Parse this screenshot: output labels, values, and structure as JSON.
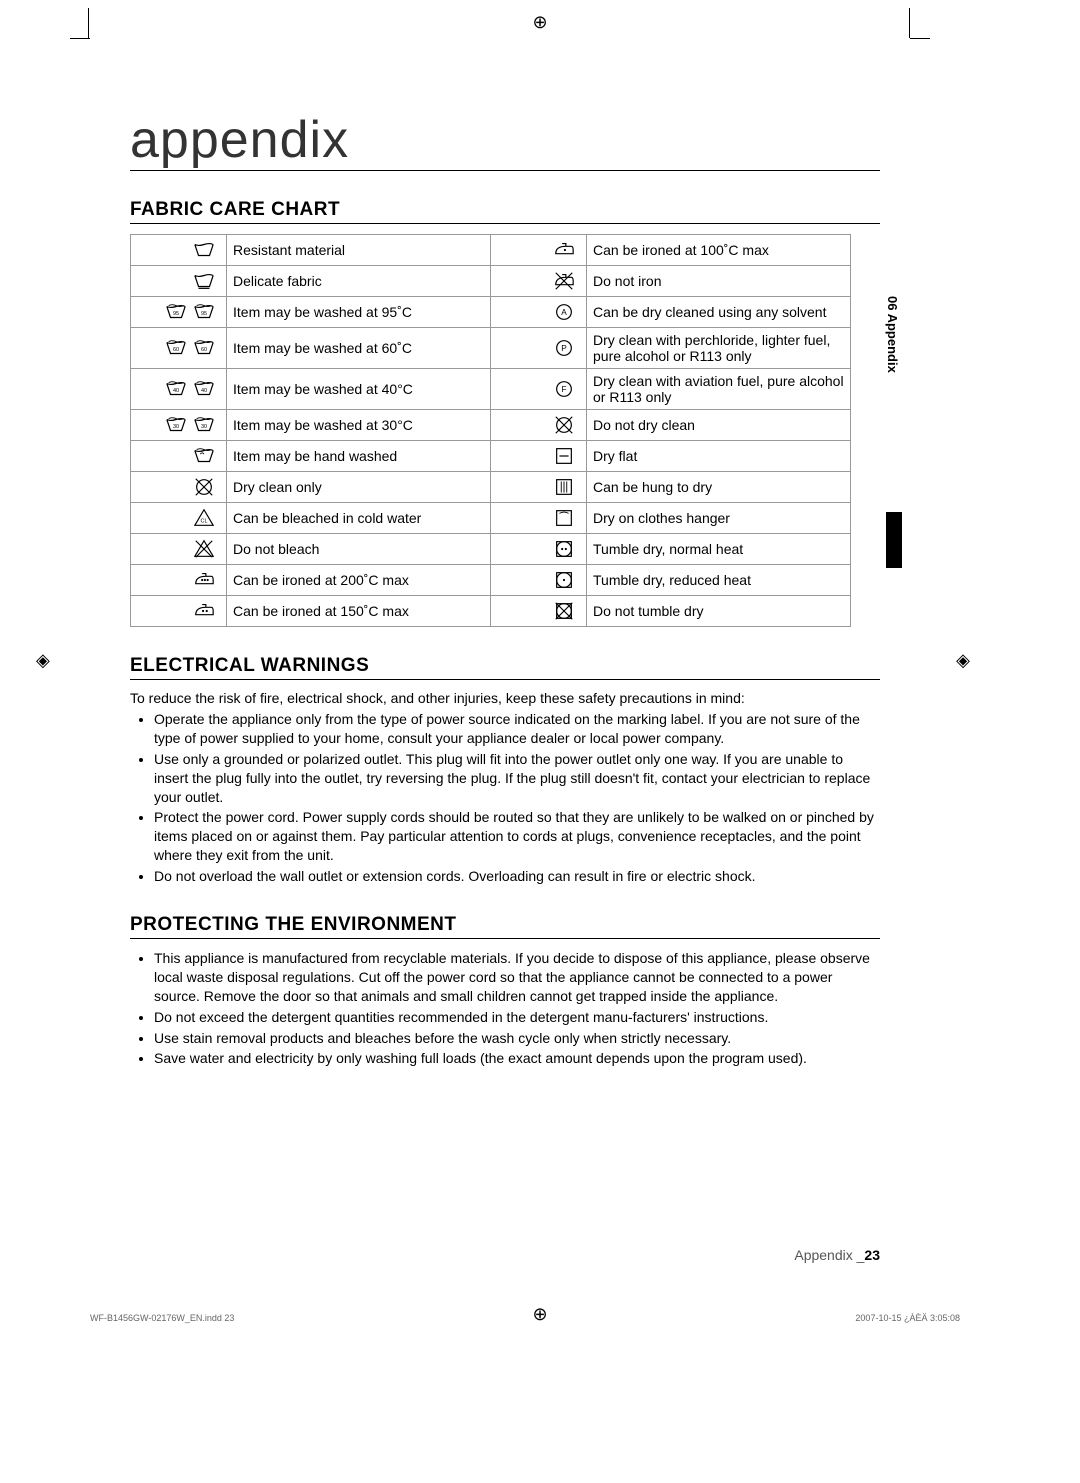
{
  "page": {
    "title": "appendix",
    "section1": "FABRIC CARE CHART",
    "section2": "ELECTRICAL WARNINGS",
    "section3": "PROTECTING THE ENVIRONMENT",
    "sidetab": "06 Appendix",
    "footer_label": "Appendix _",
    "footer_page": "23",
    "footer_tiny_left": "WF-B1456GW-02176W_EN.indd   23",
    "footer_tiny_right": "2007-10-15   ¿ÀÈÄ 3:05:08"
  },
  "fabric_rows": [
    {
      "icon_left": "tub-solid",
      "text_left": "Resistant material",
      "icon_right": "iron-1dot",
      "text_right": "Can be ironed at 100˚C max"
    },
    {
      "icon_left": "tub-bar",
      "text_left": "Delicate fabric",
      "icon_right": "iron-cross",
      "text_right": "Do not iron"
    },
    {
      "icon_left": "tub-95",
      "text_left": "Item may be washed at 95˚C",
      "icon_right": "circle-A",
      "text_right": "Can be dry cleaned using any solvent"
    },
    {
      "icon_left": "tub-60",
      "text_left": "Item may be washed at 60˚C",
      "icon_right": "circle-P",
      "text_right": "Dry clean with perchloride, lighter fuel, pure alcohol or R113 only"
    },
    {
      "icon_left": "tub-40",
      "text_left": "Item may be washed at 40°C",
      "icon_right": "circle-F",
      "text_right": "Dry clean with aviation fuel, pure alcohol or R113 only"
    },
    {
      "icon_left": "tub-30",
      "text_left": "Item may be washed at 30°C",
      "icon_right": "circle-cross",
      "text_right": "Do not dry clean"
    },
    {
      "icon_left": "hand-wash",
      "text_left": "Item may be hand washed",
      "icon_right": "dry-flat",
      "text_right": "Dry flat"
    },
    {
      "icon_left": "dryclean-only",
      "text_left": "Dry clean only",
      "icon_right": "hang-dry",
      "text_right": "Can be hung to dry"
    },
    {
      "icon_left": "bleach",
      "text_left": "Can be bleached in cold water",
      "icon_right": "hanger",
      "text_right": "Dry on clothes hanger"
    },
    {
      "icon_left": "no-bleach",
      "text_left": "Do not bleach",
      "icon_right": "tumble-2dot",
      "text_right": "Tumble dry, normal heat"
    },
    {
      "icon_left": "iron-3dot",
      "text_left": "Can be ironed at 200˚C max",
      "icon_right": "tumble-1dot",
      "text_right": "Tumble dry, reduced heat"
    },
    {
      "icon_left": "iron-2dot",
      "text_left": "Can be ironed at 150˚C max",
      "icon_right": "tumble-cross",
      "text_right": "Do not tumble dry"
    }
  ],
  "electrical_intro": "To reduce the risk of fire, electrical shock, and other injuries, keep these safety precautions in mind:",
  "electrical_bullets": [
    "Operate the appliance only from the type of power source indicated on the marking label. If you are not sure of the type of power supplied to your home, consult your appliance dealer or local power company.",
    "Use only a grounded or polarized outlet. This plug will fit into the power outlet only one way. If you are unable to insert the plug fully into the outlet, try reversing the plug. If the plug still doesn't fit, contact your electrician to replace your outlet.",
    "Protect the power cord. Power supply cords should be routed so that they are unlikely to be walked on or pinched by items placed on or against them. Pay particular attention to cords at plugs, convenience receptacles, and the point where they exit from the unit.",
    "Do not overload the wall outlet or extension cords. Overloading can result in fire or electric shock."
  ],
  "environment_bullets": [
    "This appliance is manufactured from recyclable materials. If you decide to dispose of this appliance, please observe local waste disposal regulations. Cut off the power cord so that the appliance cannot be connected to a power source. Remove the door so that animals and small children cannot get trapped inside the appliance.",
    "Do not exceed the detergent quantities recommended in the detergent manu-facturers' instructions.",
    "Use stain removal products and bleaches before the wash cycle only when strictly necessary.",
    "Save water and electricity by only washing full loads (the exact amount depends upon the program used)."
  ],
  "colors": {
    "text": "#000000",
    "border": "#999999",
    "bg": "#ffffff"
  }
}
